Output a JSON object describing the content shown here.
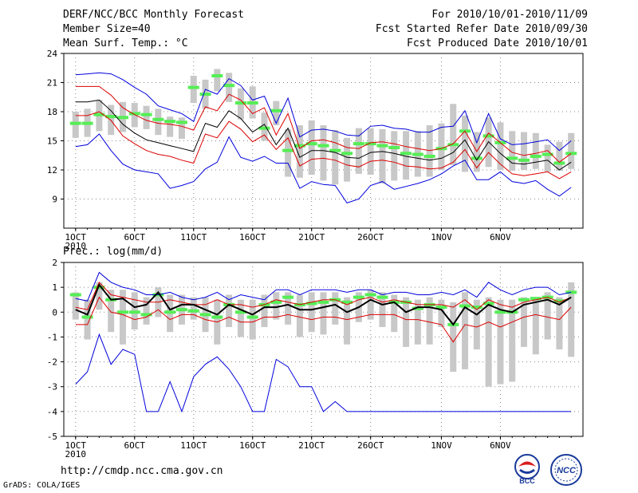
{
  "header": {
    "title": "DERF/NCC/BCC Monthly Forecast",
    "member_size": "Member Size=40",
    "variable_temp": "Mean Surf. Temp.: °C",
    "forecast_period": "For 2010/10/01-2010/11/09",
    "started_refer": "Fcst Started Refer Date 2010/09/30",
    "produced": "Fcst Produced Date 2010/10/01"
  },
  "footer": {
    "url": "http://cmdp.ncc.cma.gov.cn",
    "grads": "GrADS: COLA/IGES",
    "logo_bcc": "BCC",
    "logo_ncc": "NCC"
  },
  "colors": {
    "envelope": "#0000dd",
    "spread": "#dd0000",
    "mean": "#000000",
    "climatology_bar": "#55ee55",
    "box": "#c8c8c8",
    "grid": "#888888"
  },
  "chart_data": [
    {
      "type": "line",
      "name": "temperature",
      "title": "Mean Surf. Temp.: °C",
      "ylabel": "Mean Surf. Temp.: °C",
      "ylim": [
        6,
        24
      ],
      "yticks": [
        24,
        21,
        18,
        15,
        12,
        9
      ],
      "x_days": 40,
      "x_ticks": [
        {
          "day": 1,
          "label": "1OCT",
          "sub": "2010"
        },
        {
          "day": 6,
          "label": "6OCT"
        },
        {
          "day": 11,
          "label": "11OCT"
        },
        {
          "day": 16,
          "label": "16OCT"
        },
        {
          "day": 21,
          "label": "21OCT"
        },
        {
          "day": 26,
          "label": "26OCT"
        },
        {
          "day": 32,
          "label": "1NOV"
        },
        {
          "day": 37,
          "label": "6NOV"
        }
      ],
      "series": [
        {
          "name": "max",
          "role": "envelope",
          "values": [
            21.8,
            21.9,
            22.0,
            21.9,
            21.3,
            20.5,
            19.8,
            18.6,
            18.2,
            17.8,
            17.0,
            20.3,
            19.8,
            21.4,
            20.7,
            19.2,
            19.6,
            16.8,
            19.4,
            15.4,
            16.1,
            16.2,
            16.0,
            15.6,
            15.5,
            16.5,
            16.6,
            16.3,
            16.2,
            15.9,
            15.9,
            16.4,
            16.5,
            18.1,
            14.8,
            17.8,
            15.2,
            14.6,
            14.7,
            14.9,
            15.1,
            14.0,
            15.0
          ]
        },
        {
          "name": "upper",
          "role": "spread",
          "values": [
            20.6,
            20.6,
            20.6,
            19.7,
            18.4,
            17.7,
            17.1,
            16.8,
            16.7,
            16.5,
            16.1,
            18.5,
            18.1,
            19.8,
            19.2,
            17.8,
            18.4,
            15.6,
            17.8,
            14.2,
            15.0,
            15.1,
            14.8,
            14.3,
            14.2,
            14.8,
            14.9,
            14.7,
            14.4,
            14.2,
            14.0,
            14.2,
            14.7,
            16.0,
            13.9,
            15.8,
            14.8,
            13.8,
            13.5,
            13.7,
            14.0,
            12.8,
            13.7
          ]
        },
        {
          "name": "mean",
          "role": "mean",
          "values": [
            19.0,
            19.0,
            19.2,
            18.1,
            16.7,
            15.8,
            15.1,
            14.8,
            14.5,
            14.2,
            13.9,
            16.8,
            16.4,
            18.1,
            17.3,
            15.9,
            16.7,
            14.6,
            16.3,
            13.3,
            14.0,
            14.0,
            13.8,
            13.3,
            13.2,
            13.8,
            13.9,
            13.7,
            13.4,
            13.2,
            13.0,
            13.2,
            13.8,
            15.1,
            13.0,
            14.9,
            13.7,
            12.7,
            12.6,
            12.8,
            13.0,
            12.0,
            12.8
          ]
        },
        {
          "name": "lower",
          "role": "spread",
          "values": [
            17.6,
            17.6,
            18.0,
            17.1,
            15.5,
            14.7,
            14.0,
            13.6,
            13.4,
            13.0,
            12.7,
            15.7,
            15.3,
            17.0,
            16.2,
            14.9,
            15.6,
            14.1,
            15.3,
            12.4,
            13.1,
            13.2,
            13.0,
            12.5,
            12.3,
            12.9,
            13.0,
            12.8,
            12.4,
            12.3,
            12.1,
            12.2,
            12.8,
            14.1,
            12.2,
            13.8,
            12.6,
            11.6,
            11.4,
            11.6,
            11.8,
            11.1,
            11.8
          ]
        },
        {
          "name": "min",
          "role": "envelope",
          "values": [
            14.4,
            14.6,
            15.7,
            14.0,
            12.6,
            12.0,
            11.8,
            11.6,
            10.1,
            10.4,
            10.8,
            12.1,
            12.8,
            15.4,
            13.3,
            12.9,
            13.4,
            12.7,
            12.7,
            10.1,
            10.8,
            10.5,
            10.4,
            8.6,
            9.0,
            10.4,
            10.8,
            10.0,
            10.3,
            10.6,
            11.0,
            11.6,
            12.4,
            13.0,
            11.0,
            11.0,
            11.8,
            10.8,
            10.6,
            10.9,
            10.0,
            9.3,
            10.2
          ]
        },
        {
          "name": "climatology",
          "role": "bar",
          "values": [
            16.8,
            16.8,
            17.7,
            17.5,
            17.4,
            17.8,
            17.7,
            17.2,
            17.0,
            16.9,
            20.5,
            19.8,
            21.7,
            20.7,
            18.9,
            18.9,
            16.3,
            18.1,
            14.0,
            14.5,
            14.7,
            14.5,
            14.0,
            13.7,
            14.7,
            14.7,
            14.5,
            14.3,
            13.7,
            13.6,
            13.4,
            14.2,
            14.6,
            16.0,
            13.2,
            15.5,
            14.8,
            13.2,
            13.0,
            13.4,
            13.6,
            12.7,
            13.7
          ]
        }
      ],
      "boxes": [
        [
          15.3,
          18.0
        ],
        [
          15.4,
          18.3
        ],
        [
          16.0,
          19.2
        ],
        [
          15.6,
          18.7
        ],
        [
          15.9,
          19.0
        ],
        [
          16.4,
          18.9
        ],
        [
          16.2,
          18.6
        ],
        [
          15.6,
          18.3
        ],
        [
          15.4,
          17.5
        ],
        [
          15.2,
          17.4
        ],
        [
          18.9,
          21.7
        ],
        [
          18.3,
          21.3
        ],
        [
          20.1,
          22.4
        ],
        [
          19.0,
          22.0
        ],
        [
          17.2,
          20.4
        ],
        [
          17.3,
          20.6
        ],
        [
          15.0,
          17.9
        ],
        [
          16.6,
          19.1
        ],
        [
          11.3,
          16.2
        ],
        [
          11.2,
          16.6
        ],
        [
          11.5,
          17.1
        ],
        [
          10.9,
          16.6
        ],
        [
          10.5,
          16.1
        ],
        [
          10.8,
          15.3
        ],
        [
          11.6,
          16.3
        ],
        [
          11.5,
          16.3
        ],
        [
          10.6,
          16.2
        ],
        [
          10.9,
          16.0
        ],
        [
          11.0,
          16.0
        ],
        [
          11.3,
          16.0
        ],
        [
          11.3,
          16.6
        ],
        [
          12.0,
          16.8
        ],
        [
          12.5,
          18.8
        ],
        [
          11.8,
          17.6
        ],
        [
          11.8,
          15.9
        ],
        [
          12.3,
          17.4
        ],
        [
          12.0,
          16.9
        ],
        [
          11.9,
          16.0
        ],
        [
          12.0,
          15.9
        ],
        [
          12.1,
          15.8
        ],
        [
          11.8,
          14.6
        ],
        [
          11.9,
          14.9
        ],
        [
          12.1,
          15.8
        ]
      ]
    },
    {
      "type": "line",
      "name": "precipitation",
      "title": "Prec.: log(mm/d)",
      "ylabel": "Prec.: log(mm/d)",
      "ylim": [
        -5,
        2
      ],
      "yticks": [
        2,
        1,
        0,
        -1,
        -2,
        -3,
        -4,
        -5
      ],
      "x_days": 40,
      "x_ticks": [
        {
          "day": 1,
          "label": "1OCT",
          "sub": "2010"
        },
        {
          "day": 6,
          "label": "6OCT"
        },
        {
          "day": 11,
          "label": "11OCT"
        },
        {
          "day": 16,
          "label": "16OCT"
        },
        {
          "day": 21,
          "label": "21OCT"
        },
        {
          "day": 26,
          "label": "26OCT"
        },
        {
          "day": 32,
          "label": "1NOV"
        },
        {
          "day": 37,
          "label": "6NOV"
        }
      ],
      "series": [
        {
          "name": "max",
          "role": "envelope",
          "values": [
            0.55,
            0.45,
            1.6,
            1.2,
            1.0,
            0.9,
            0.7,
            0.7,
            0.8,
            0.6,
            0.5,
            0.6,
            0.8,
            0.5,
            0.7,
            0.6,
            0.5,
            0.9,
            0.9,
            0.7,
            0.9,
            0.9,
            0.9,
            0.8,
            0.9,
            0.9,
            0.7,
            0.8,
            0.8,
            0.7,
            0.7,
            0.8,
            0.7,
            0.9,
            0.6,
            1.2,
            0.9,
            0.7,
            0.9,
            1.0,
            1.0,
            0.7,
            0.8
          ]
        },
        {
          "name": "upper",
          "role": "spread",
          "values": [
            0.2,
            0.1,
            1.2,
            0.7,
            0.6,
            0.5,
            0.4,
            0.4,
            0.5,
            0.4,
            0.3,
            0.3,
            0.5,
            0.3,
            0.3,
            0.2,
            0.3,
            0.5,
            0.4,
            0.3,
            0.4,
            0.5,
            0.5,
            0.3,
            0.5,
            0.6,
            0.4,
            0.5,
            0.4,
            0.3,
            0.3,
            0.3,
            0.2,
            0.5,
            0.1,
            0.5,
            0.3,
            0.2,
            0.4,
            0.5,
            0.6,
            0.4,
            0.6
          ]
        },
        {
          "name": "mean",
          "role": "mean",
          "values": [
            0.1,
            -0.1,
            1.1,
            0.5,
            0.55,
            0.2,
            0.3,
            0.8,
            0.1,
            0.3,
            0.3,
            0.1,
            -0.1,
            0.3,
            0.1,
            -0.1,
            0.2,
            0.2,
            0.3,
            0.1,
            0.1,
            0.2,
            0.3,
            0.0,
            0.2,
            0.5,
            0.3,
            0.4,
            0.0,
            0.2,
            0.2,
            0.1,
            -0.5,
            0.2,
            -0.1,
            0.3,
            0.1,
            0.0,
            0.3,
            0.4,
            0.5,
            0.3,
            0.6
          ]
        },
        {
          "name": "lower",
          "role": "spread",
          "values": [
            -0.5,
            -0.5,
            0.6,
            0.0,
            -0.1,
            -0.3,
            -0.2,
            0.1,
            -0.3,
            -0.1,
            -0.1,
            -0.3,
            -0.4,
            -0.2,
            -0.4,
            -0.4,
            -0.2,
            -0.2,
            -0.1,
            -0.2,
            -0.3,
            -0.2,
            -0.2,
            -0.3,
            -0.2,
            -0.1,
            -0.1,
            -0.1,
            -0.3,
            -0.3,
            -0.4,
            -0.5,
            -1.2,
            -0.5,
            -0.6,
            -0.4,
            -0.6,
            -0.4,
            -0.2,
            -0.1,
            -0.2,
            -0.3,
            0.2
          ]
        },
        {
          "name": "min",
          "role": "envelope",
          "values": [
            -2.9,
            -2.4,
            -0.9,
            -2.1,
            -1.5,
            -1.7,
            -4.0,
            -4.0,
            -2.8,
            -4.0,
            -2.6,
            -2.1,
            -1.8,
            -2.3,
            -3.0,
            -4.0,
            -4.0,
            -1.9,
            -2.2,
            -3.0,
            -3.0,
            -4.0,
            -3.6,
            -4.0,
            -4.0,
            -4.0,
            -4.0,
            -4.0,
            -4.0,
            -4.0,
            -4.0,
            -4.0,
            -4.0,
            -4.0,
            -4.0,
            -4.0,
            -4.0,
            -4.0,
            -4.0,
            -4.0,
            -4.0,
            -4.0,
            -4.0
          ]
        },
        {
          "name": "climatology",
          "role": "bar",
          "values": [
            0.7,
            -0.2,
            1.0,
            0.5,
            0.0,
            0.0,
            -0.1,
            0.7,
            0.0,
            0.1,
            0.05,
            -0.1,
            -0.2,
            0.3,
            0.0,
            -0.2,
            0.3,
            0.4,
            0.6,
            0.3,
            0.35,
            0.4,
            0.5,
            0.4,
            0.6,
            0.7,
            0.6,
            0.4,
            0.4,
            0.15,
            0.3,
            0.2,
            -0.5,
            0.25,
            0.2,
            0.35,
            0.0,
            0.0,
            0.5,
            0.55,
            0.6,
            0.45,
            0.8
          ]
        },
        {
          "name": "box_low",
          "role": "box_low",
          "values": [
            -0.3,
            -1.1,
            0.1,
            -0.8,
            -1.3,
            -0.7,
            -0.5,
            -0.2,
            -0.8,
            -0.5,
            -0.3,
            -0.8,
            -1.3,
            -0.6,
            -1.0,
            -1.1,
            -0.6,
            -0.3,
            -0.5,
            -1.0,
            -0.8,
            -0.9,
            -0.5,
            -1.3,
            -0.4,
            -0.3,
            -0.6,
            -0.8,
            -1.4,
            -1.3,
            -1.3,
            -0.6,
            -2.4,
            -2.3,
            -1.5,
            -3.0,
            -2.9,
            -2.8,
            -1.4,
            -1.7,
            -1.1,
            -1.5,
            -1.8
          ]
        },
        {
          "name": "box_high",
          "role": "box_high",
          "values": [
            0.8,
            0.5,
            1.2,
            0.9,
            0.9,
            0.8,
            0.6,
            1.0,
            0.7,
            0.7,
            0.6,
            0.6,
            0.5,
            0.7,
            0.5,
            0.5,
            0.7,
            0.8,
            0.8,
            0.7,
            0.8,
            0.8,
            0.8,
            0.6,
            0.8,
            0.9,
            0.8,
            0.7,
            0.6,
            0.5,
            0.6,
            0.5,
            0.4,
            0.8,
            0.5,
            0.6,
            0.5,
            0.5,
            0.6,
            0.6,
            0.8,
            0.6,
            1.2
          ]
        }
      ]
    }
  ]
}
